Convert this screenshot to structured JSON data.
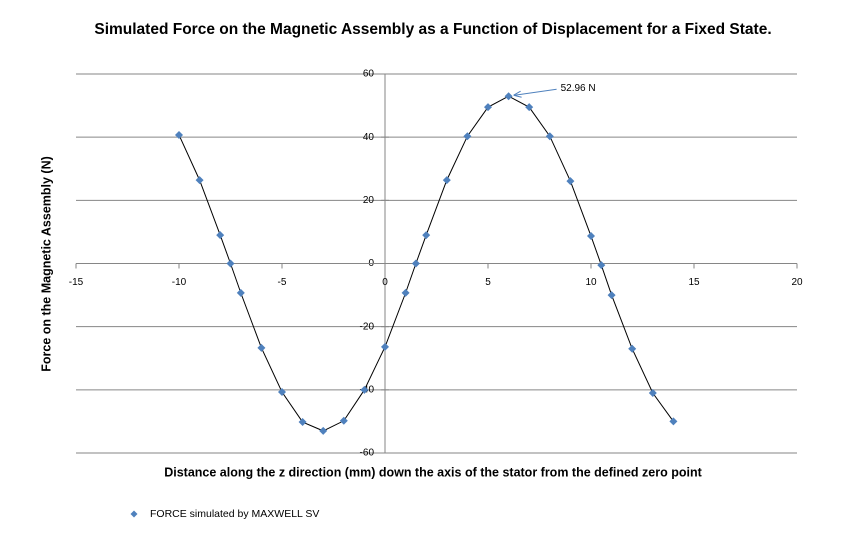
{
  "chart_data": {
    "type": "line",
    "title": "Simulated Force on the Magnetic Assembly as a Function of Displacement for a Fixed State.",
    "x_label": "Distance along the z direction (mm) down the axis of the stator from the defined zero point",
    "y_label": "Force on the Magnetic Assembly (N)",
    "x": [
      -10,
      -9,
      -8,
      -7.5,
      -7,
      -6,
      -5,
      -4,
      -3,
      -2,
      -1,
      0,
      1,
      1.5,
      2,
      3,
      4,
      5,
      6,
      7,
      8,
      9,
      10,
      10.5,
      11,
      12,
      13,
      14
    ],
    "series": [
      {
        "name": "FORCE simulated by MAXWELL SV",
        "color": "#4f81bd",
        "values": [
          40.7,
          26.4,
          9.0,
          0,
          -9.3,
          -26.7,
          -40.7,
          -50.2,
          -53,
          -49.8,
          -40,
          -26.4,
          -9.3,
          0,
          9,
          26.4,
          40.3,
          49.5,
          52.96,
          49.5,
          40.3,
          26.1,
          8.7,
          -0.5,
          -10,
          -27,
          -41,
          -50
        ]
      }
    ],
    "annotation": {
      "text": "52.96  N",
      "x": 6,
      "y": 52.96
    },
    "xlim": [
      -15,
      20
    ],
    "xticks": [
      -15,
      -10,
      -5,
      0,
      5,
      10,
      15,
      20
    ],
    "ylim": [
      -60,
      60
    ],
    "yticks": [
      -60,
      -40,
      -20,
      0,
      20,
      40,
      60
    ],
    "grid": true,
    "line_color": "#000000",
    "legend": "bottom"
  }
}
